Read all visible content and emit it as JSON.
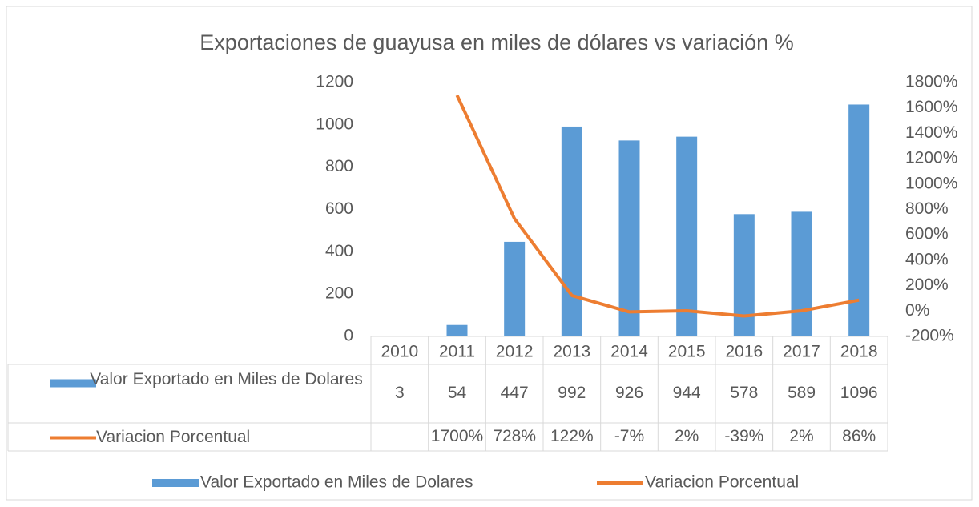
{
  "chart_data": {
    "type": "bar",
    "title": "Exportaciones de guayusa en miles de dólares vs variación %",
    "categories": [
      "2010",
      "2011",
      "2012",
      "2013",
      "2014",
      "2015",
      "2016",
      "2017",
      "2018"
    ],
    "series": [
      {
        "name": "Valor Exportado en Miles de Dolares",
        "type": "bar",
        "color": "#5b9bd5",
        "values": [
          3,
          54,
          447,
          992,
          926,
          944,
          578,
          589,
          1096
        ]
      },
      {
        "name": "Variacion Porcentual",
        "type": "line",
        "axis": "y2",
        "color": "#ed7d31",
        "values": [
          null,
          1700,
          728,
          122,
          -7,
          2,
          -39,
          2,
          86
        ],
        "value_labels": [
          null,
          "1700%",
          "728%",
          "122%",
          "-7%",
          "2%",
          "-39%",
          "2%",
          "86%"
        ]
      }
    ],
    "ylim": [
      0,
      1200
    ],
    "yticks": [
      0,
      200,
      400,
      600,
      800,
      1000,
      1200
    ],
    "y2lim": [
      -200,
      1800
    ],
    "y2ticks": [
      {
        "value": -200,
        "label": "-200%"
      },
      {
        "value": 0,
        "label": "0%"
      },
      {
        "value": 200,
        "label": "200%"
      },
      {
        "value": 400,
        "label": "400%"
      },
      {
        "value": 600,
        "label": "600%"
      },
      {
        "value": 800,
        "label": "800%"
      },
      {
        "value": 1000,
        "label": "1000%"
      },
      {
        "value": 1200,
        "label": "1200%"
      },
      {
        "value": 1400,
        "label": "1400%"
      },
      {
        "value": 1600,
        "label": "1600%"
      },
      {
        "value": 1800,
        "label": "1800%"
      }
    ],
    "legend": "bottom",
    "grid": false
  }
}
